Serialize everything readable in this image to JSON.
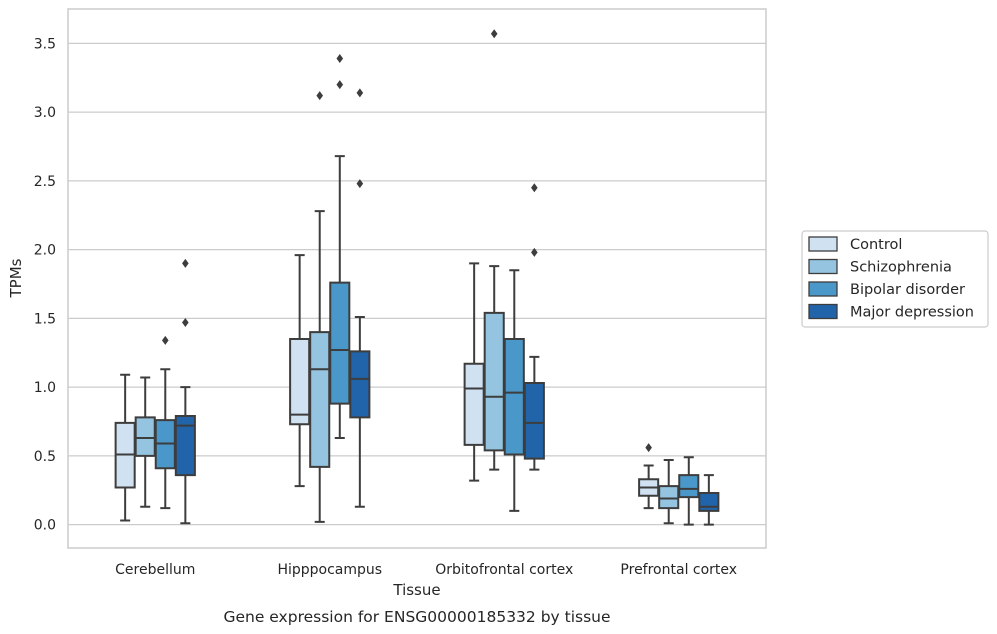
{
  "chart_data": {
    "type": "box",
    "title": "Gene expression for ENSG00000185332 by tissue",
    "xlabel": "Tissue",
    "ylabel": "TPMs",
    "ylim": [
      -0.17,
      3.75
    ],
    "yticks": [
      "0.0",
      "0.5",
      "1.0",
      "1.5",
      "2.0",
      "2.5",
      "3.0",
      "3.5"
    ],
    "grid": "horizontal",
    "legend_position": "right",
    "categories": [
      "Cerebellum",
      "Hipppocampus",
      "Orbitofrontal cortex",
      "Prefrontal cortex"
    ],
    "series": [
      {
        "name": "Control",
        "color": "#d0e1f2",
        "boxes": [
          {
            "whislo": 0.03,
            "q1": 0.27,
            "med": 0.51,
            "q3": 0.74,
            "whishi": 1.09,
            "fliers": []
          },
          {
            "whislo": 0.28,
            "q1": 0.73,
            "med": 0.8,
            "q3": 1.35,
            "whishi": 1.96,
            "fliers": []
          },
          {
            "whislo": 0.32,
            "q1": 0.58,
            "med": 0.99,
            "q3": 1.17,
            "whishi": 1.9,
            "fliers": []
          },
          {
            "whislo": 0.12,
            "q1": 0.21,
            "med": 0.27,
            "q3": 0.33,
            "whishi": 0.43,
            "fliers": [
              0.56
            ]
          }
        ]
      },
      {
        "name": "Schizophrenia",
        "color": "#94c4df",
        "boxes": [
          {
            "whislo": 0.13,
            "q1": 0.5,
            "med": 0.63,
            "q3": 0.78,
            "whishi": 1.07,
            "fliers": []
          },
          {
            "whislo": 0.02,
            "q1": 0.42,
            "med": 1.13,
            "q3": 1.4,
            "whishi": 2.28,
            "fliers": [
              3.12
            ]
          },
          {
            "whislo": 0.4,
            "q1": 0.54,
            "med": 0.93,
            "q3": 1.54,
            "whishi": 1.88,
            "fliers": [
              3.57
            ]
          },
          {
            "whislo": 0.01,
            "q1": 0.12,
            "med": 0.19,
            "q3": 0.28,
            "whishi": 0.47,
            "fliers": []
          }
        ]
      },
      {
        "name": "Bipolar disorder",
        "color": "#4a98c9",
        "boxes": [
          {
            "whislo": 0.12,
            "q1": 0.41,
            "med": 0.59,
            "q3": 0.76,
            "whishi": 1.13,
            "fliers": [
              1.34
            ]
          },
          {
            "whislo": 0.63,
            "q1": 0.88,
            "med": 1.27,
            "q3": 1.76,
            "whishi": 2.68,
            "fliers": [
              3.2,
              3.39
            ]
          },
          {
            "whislo": 0.1,
            "q1": 0.51,
            "med": 0.96,
            "q3": 1.35,
            "whishi": 1.85,
            "fliers": []
          },
          {
            "whislo": 0.0,
            "q1": 0.2,
            "med": 0.26,
            "q3": 0.36,
            "whishi": 0.49,
            "fliers": []
          }
        ]
      },
      {
        "name": "Major depression",
        "color": "#2264aa",
        "boxes": [
          {
            "whislo": 0.01,
            "q1": 0.36,
            "med": 0.72,
            "q3": 0.79,
            "whishi": 1.0,
            "fliers": [
              1.47,
              1.9
            ]
          },
          {
            "whislo": 0.13,
            "q1": 0.78,
            "med": 1.06,
            "q3": 1.26,
            "whishi": 1.51,
            "fliers": [
              2.48,
              3.14
            ]
          },
          {
            "whislo": 0.4,
            "q1": 0.48,
            "med": 0.74,
            "q3": 1.03,
            "whishi": 1.22,
            "fliers": [
              1.98,
              2.45
            ]
          },
          {
            "whislo": 0.0,
            "q1": 0.1,
            "med": 0.13,
            "q3": 0.23,
            "whishi": 0.36,
            "fliers": []
          }
        ]
      }
    ]
  }
}
